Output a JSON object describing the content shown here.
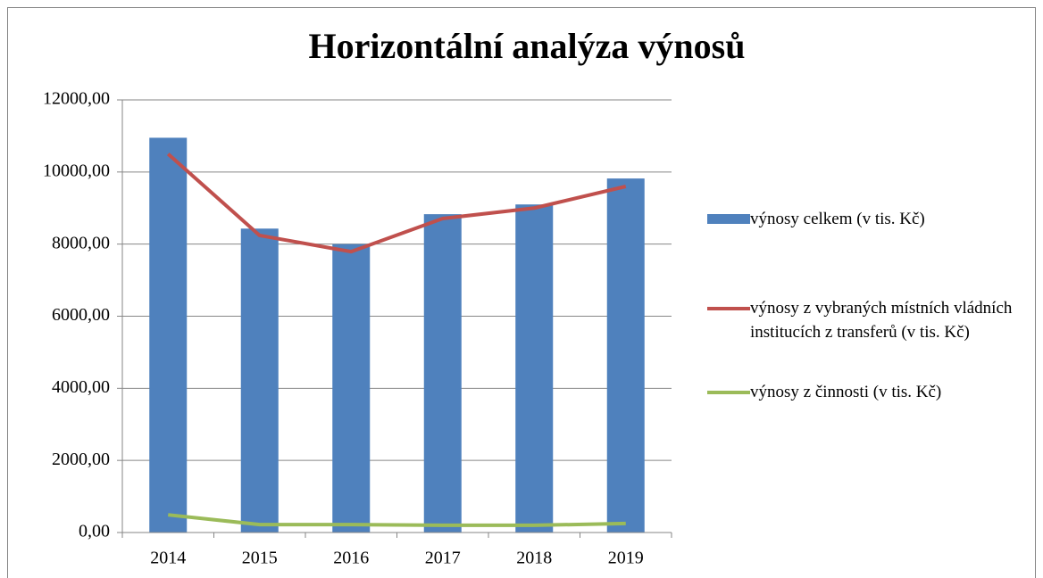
{
  "chart_data": {
    "type": "bar",
    "title": "Horizontální analýza výnosů",
    "categories": [
      "2014",
      "2015",
      "2016",
      "2017",
      "2018",
      "2019"
    ],
    "series": [
      {
        "name": "výnosy celkem (v tis. Kč)",
        "type": "bar",
        "color": "#4f81bd",
        "values": [
          10950,
          8430,
          8000,
          8830,
          9100,
          9820
        ]
      },
      {
        "name": "výnosy z vybraných místních vládních institucích z transferů (v tis. Kč)",
        "type": "line",
        "color": "#c0504d",
        "values": [
          10500,
          8240,
          7790,
          8710,
          9000,
          9600
        ]
      },
      {
        "name": "výnosy z činnosti (v tis. Kč)",
        "type": "line",
        "color": "#9bbb59",
        "values": [
          490,
          220,
          220,
          200,
          200,
          250
        ]
      }
    ],
    "ylim": [
      0,
      12000
    ],
    "yticks": [
      {
        "value": 0,
        "label": "0,00"
      },
      {
        "value": 2000,
        "label": "2000,00"
      },
      {
        "value": 4000,
        "label": "4000,00"
      },
      {
        "value": 6000,
        "label": "6000,00"
      },
      {
        "value": 8000,
        "label": "8000,00"
      },
      {
        "value": 10000,
        "label": "10000,00"
      },
      {
        "value": 12000,
        "label": "12000,00"
      }
    ],
    "grid": true,
    "legend": "right"
  }
}
